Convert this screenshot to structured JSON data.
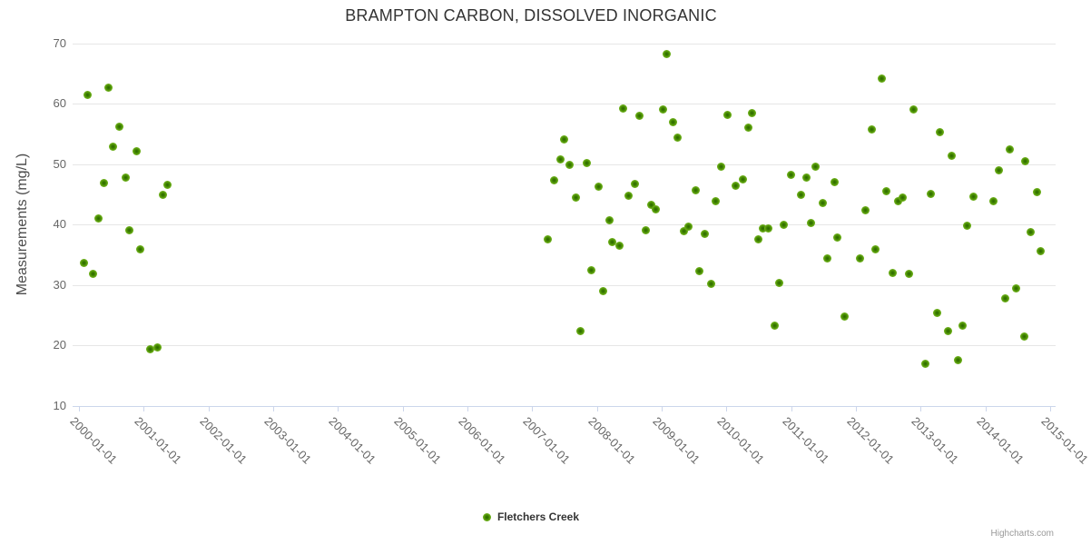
{
  "credit": "Highcharts.com",
  "colors": {
    "series_green_edge": "#85c43c",
    "series_green_center": "#2a6500",
    "grid": "#e6e6e6",
    "axis_line": "#ccd6eb",
    "title_text": "#333333",
    "axis_text": "#666666",
    "credit_text": "#999999"
  },
  "chart_data": {
    "type": "scatter",
    "title": "BRAMPTON CARBON, DISSOLVED INORGANIC",
    "xlabel": "",
    "ylabel": "Measurements (mg/L)",
    "ylim": [
      10,
      70
    ],
    "yticks": [
      70,
      60,
      50,
      40,
      30,
      20,
      10
    ],
    "xticks": [
      "2000-01-01",
      "2001-01-01",
      "2002-01-01",
      "2003-01-01",
      "2004-01-01",
      "2005-01-01",
      "2006-01-01",
      "2007-01-01",
      "2008-01-01",
      "2009-01-01",
      "2010-01-01",
      "2011-01-01",
      "2012-01-01",
      "2013-01-01",
      "2014-01-01",
      "2015-01-01"
    ],
    "grid": true,
    "legend_position": "bottom-center",
    "series": [
      {
        "name": "Fletchers Creek",
        "points": [
          [
            "2000-01-27",
            33.6
          ],
          [
            "2000-02-19",
            61.5
          ],
          [
            "2000-03-18",
            31.8
          ],
          [
            "2000-04-19",
            41.0
          ],
          [
            "2000-05-22",
            46.8
          ],
          [
            "2000-06-13",
            62.6
          ],
          [
            "2000-07-12",
            52.9
          ],
          [
            "2000-08-14",
            56.2
          ],
          [
            "2000-09-20",
            47.8
          ],
          [
            "2000-10-12",
            39.1
          ],
          [
            "2000-11-21",
            52.1
          ],
          [
            "2000-12-13",
            35.9
          ],
          [
            "2001-02-09",
            19.4
          ],
          [
            "2001-03-18",
            19.6
          ],
          [
            "2001-04-16",
            44.9
          ],
          [
            "2001-05-15",
            46.5
          ],
          [
            "2007-03-28",
            37.5
          ],
          [
            "2007-05-04",
            47.3
          ],
          [
            "2007-06-06",
            50.8
          ],
          [
            "2007-06-28",
            54.1
          ],
          [
            "2007-07-31",
            49.9
          ],
          [
            "2007-09-02",
            44.4
          ],
          [
            "2007-10-01",
            22.3
          ],
          [
            "2007-11-06",
            50.2
          ],
          [
            "2007-12-02",
            32.4
          ],
          [
            "2008-01-08",
            46.3
          ],
          [
            "2008-02-06",
            29.0
          ],
          [
            "2008-03-10",
            40.7
          ],
          [
            "2008-03-25",
            37.1
          ],
          [
            "2008-05-07",
            36.5
          ],
          [
            "2008-05-29",
            59.2
          ],
          [
            "2008-06-27",
            44.8
          ],
          [
            "2008-08-02",
            46.7
          ],
          [
            "2008-08-28",
            58.0
          ],
          [
            "2008-10-03",
            39.0
          ],
          [
            "2008-11-02",
            43.2
          ],
          [
            "2008-11-27",
            42.5
          ],
          [
            "2009-01-08",
            59.0
          ],
          [
            "2009-01-30",
            68.2
          ],
          [
            "2009-03-04",
            56.9
          ],
          [
            "2009-03-29",
            54.4
          ],
          [
            "2009-05-05",
            38.9
          ],
          [
            "2009-05-30",
            39.7
          ],
          [
            "2009-07-10",
            45.6
          ],
          [
            "2009-07-31",
            32.3
          ],
          [
            "2009-08-30",
            38.4
          ],
          [
            "2009-10-05",
            30.2
          ],
          [
            "2009-11-03",
            43.9
          ],
          [
            "2009-12-02",
            49.6
          ],
          [
            "2010-01-08",
            58.1
          ],
          [
            "2010-02-21",
            46.4
          ],
          [
            "2010-04-01",
            47.4
          ],
          [
            "2010-05-01",
            56.0
          ],
          [
            "2010-05-23",
            58.4
          ],
          [
            "2010-06-28",
            37.5
          ],
          [
            "2010-07-24",
            39.4
          ],
          [
            "2010-08-26",
            39.3
          ],
          [
            "2010-10-01",
            23.3
          ],
          [
            "2010-10-27",
            30.3
          ],
          [
            "2010-11-21",
            40.0
          ],
          [
            "2011-01-01",
            48.2
          ],
          [
            "2011-02-24",
            44.9
          ],
          [
            "2011-03-25",
            47.8
          ],
          [
            "2011-04-24",
            40.2
          ],
          [
            "2011-05-19",
            49.5
          ],
          [
            "2011-06-28",
            43.6
          ],
          [
            "2011-07-24",
            34.4
          ],
          [
            "2011-09-02",
            47.0
          ],
          [
            "2011-09-20",
            37.8
          ],
          [
            "2011-10-27",
            24.7
          ],
          [
            "2012-01-22",
            34.4
          ],
          [
            "2012-02-24",
            42.3
          ],
          [
            "2012-03-28",
            55.7
          ],
          [
            "2012-04-22",
            35.9
          ],
          [
            "2012-05-25",
            64.1
          ],
          [
            "2012-06-20",
            45.5
          ],
          [
            "2012-07-26",
            31.9
          ],
          [
            "2012-08-28",
            43.8
          ],
          [
            "2012-09-23",
            44.5
          ],
          [
            "2012-10-29",
            31.8
          ],
          [
            "2012-11-24",
            59.0
          ],
          [
            "2013-01-29",
            17.0
          ],
          [
            "2013-02-27",
            45.1
          ],
          [
            "2013-04-01",
            25.3
          ],
          [
            "2013-04-19",
            55.2
          ],
          [
            "2013-06-02",
            22.3
          ],
          [
            "2013-06-24",
            51.3
          ],
          [
            "2013-07-30",
            17.6
          ],
          [
            "2013-08-25",
            23.2
          ],
          [
            "2013-09-19",
            39.8
          ],
          [
            "2013-10-26",
            44.6
          ],
          [
            "2014-02-16",
            43.9
          ],
          [
            "2014-03-14",
            48.9
          ],
          [
            "2014-04-23",
            27.8
          ],
          [
            "2014-05-19",
            52.4
          ],
          [
            "2014-06-21",
            29.4
          ],
          [
            "2014-08-07",
            21.5
          ],
          [
            "2014-08-14",
            50.4
          ],
          [
            "2014-09-13",
            38.8
          ],
          [
            "2014-10-16",
            45.4
          ],
          [
            "2014-11-10",
            35.6
          ]
        ]
      }
    ]
  }
}
